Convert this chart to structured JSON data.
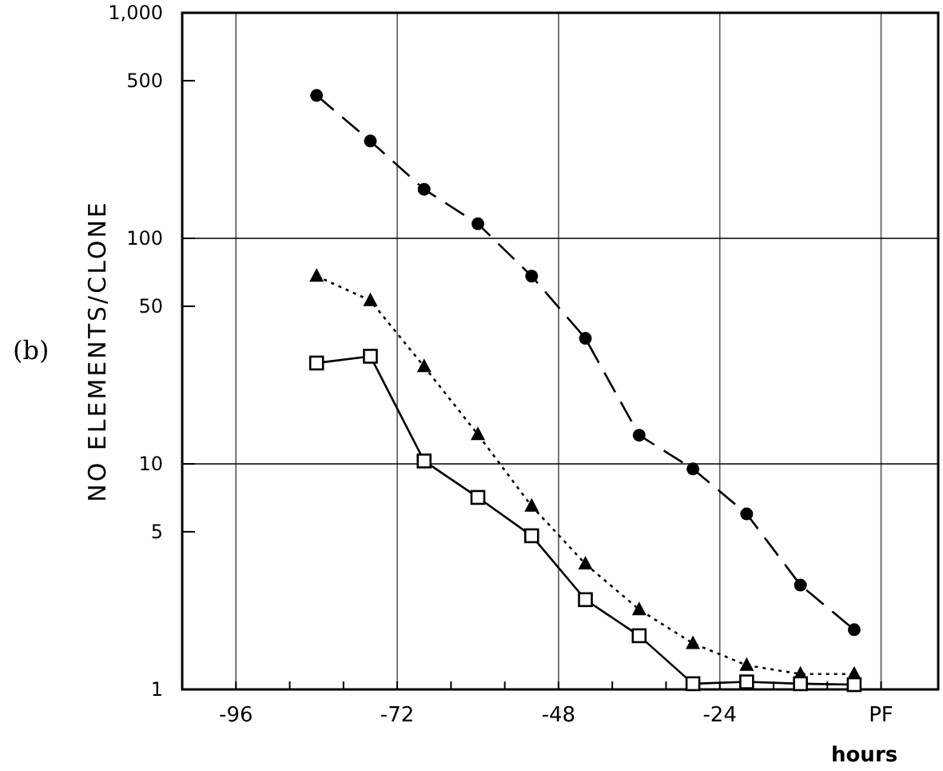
{
  "chart_data": {
    "type": "line",
    "xlabel": "hours",
    "ylabel": "NO ELEMENTS/CLONE",
    "annotations": [
      "(b)"
    ],
    "x": [
      -84,
      -76,
      -68,
      -60,
      -52,
      -44,
      -36,
      -28,
      -20,
      -12,
      -4
    ],
    "series": [
      {
        "color": "#000000",
        "marker": "circle",
        "line_style": "dashed",
        "values": [
          430,
          270,
          165,
          116,
          68,
          36,
          13.4,
          9.5,
          6,
          2.9,
          1.84
        ]
      },
      {
        "color": "#000000",
        "marker": "triangle",
        "line_style": "dotted",
        "values": [
          68,
          53,
          27,
          13.5,
          6.5,
          3.6,
          2.26,
          1.6,
          1.28,
          1.17,
          1.17
        ]
      },
      {
        "color": "#000000",
        "marker": "square",
        "line_style": "solid",
        "values": [
          28,
          30,
          10.3,
          7.1,
          4.8,
          2.5,
          1.73,
          1.06,
          1.08,
          1.06,
          1.05
        ]
      }
    ],
    "log": true,
    "xlim": [
      -104,
      8.5
    ],
    "ylim": [
      1,
      1000
    ],
    "xticks": [
      -96,
      {
        "value": -88,
        "label": null
      },
      {
        "value": -80,
        "label": null
      },
      -72,
      {
        "value": -64,
        "label": null
      },
      {
        "value": -56,
        "label": null
      },
      -48,
      {
        "value": -40,
        "label": null
      },
      {
        "value": -32,
        "label": null
      },
      -24,
      {
        "value": -16,
        "label": null
      },
      {
        "value": -8,
        "label": null
      },
      {
        "value": 0,
        "label": "PF"
      }
    ],
    "yticks": [
      1,
      5,
      10,
      50,
      100,
      500,
      {
        "value": 1000,
        "label": "1,000"
      }
    ],
    "grid": "x",
    "ref_lines": [
      {
        "axis": "y",
        "value": 10,
        "color": "#000000"
      },
      {
        "axis": "y",
        "value": 100,
        "color": "#000000"
      }
    ]
  }
}
